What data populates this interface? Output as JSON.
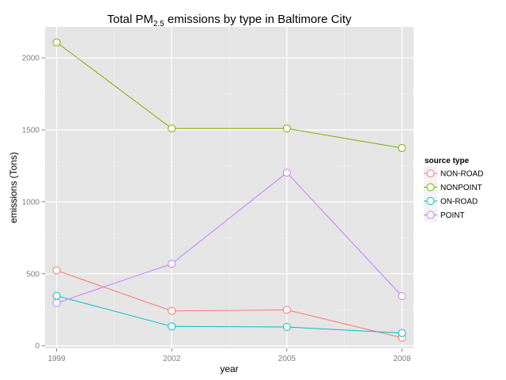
{
  "chart_data": {
    "type": "line",
    "title": {
      "prefix": "Total PM",
      "subscript": "2.5",
      "suffix": " emissions by type in Baltimore City"
    },
    "xlabel": "year",
    "ylabel": "emissions (Tons)",
    "x": [
      1999,
      2002,
      2005,
      2008
    ],
    "x_ticks": [
      "1999",
      "2002",
      "2005",
      "2008"
    ],
    "y_ticks": [
      "0",
      "500",
      "1000",
      "1500",
      "2000"
    ],
    "xlim": [
      1998.7,
      2008.3
    ],
    "ylim": [
      -18,
      2215
    ],
    "grid": true,
    "legend": {
      "title": "source type",
      "position": "right"
    },
    "series": [
      {
        "name": "NON-ROAD",
        "color": "#F8766D",
        "values": [
          522.9,
          242.0,
          248.9,
          55.8
        ]
      },
      {
        "name": "NONPOINT",
        "color": "#7CAE00",
        "values": [
          2107.6,
          1509.5,
          1509.5,
          1373.2
        ]
      },
      {
        "name": "ON-ROAD",
        "color": "#00BFC4",
        "values": [
          346.8,
          134.3,
          130.4,
          88.3
        ]
      },
      {
        "name": "POINT",
        "color": "#C77CFF",
        "values": [
          296.8,
          569.3,
          1202.5,
          344.98
        ]
      }
    ]
  }
}
